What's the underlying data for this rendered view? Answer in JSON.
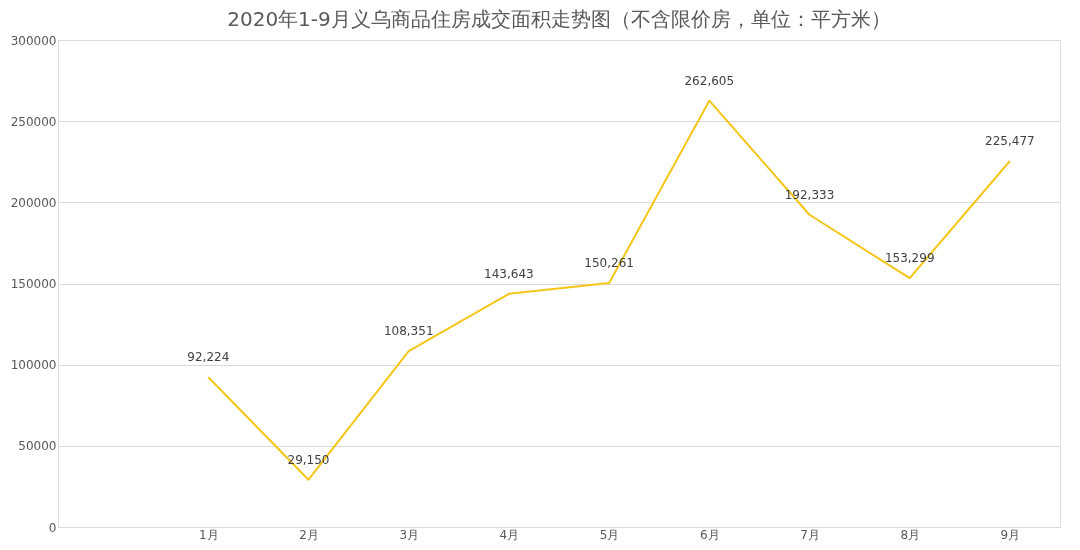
{
  "chart_data": {
    "type": "line",
    "title": "2020年1-9月义乌商品住房成交面积走势图（不含限价房，单位：平方米）",
    "categories": [
      null,
      "1月",
      "2月",
      "3月",
      "4月",
      "5月",
      "6月",
      "7月",
      "8月",
      "9月"
    ],
    "series": [
      {
        "color": "#f5c518",
        "values": [
          null,
          92224,
          29150,
          108351,
          143643,
          150261,
          262605,
          192333,
          153299,
          225477
        ],
        "value_labels": [
          null,
          "92,224",
          "29,150",
          "108,351",
          "143,643",
          "150,261",
          "262,605",
          "192,333",
          "153,299",
          "225,477"
        ]
      }
    ],
    "ylim": [
      0,
      300000
    ],
    "yticks": [
      0,
      50000,
      100000,
      150000,
      200000,
      250000,
      300000
    ],
    "grid": "y",
    "marker": "none",
    "line_style": "solid"
  }
}
